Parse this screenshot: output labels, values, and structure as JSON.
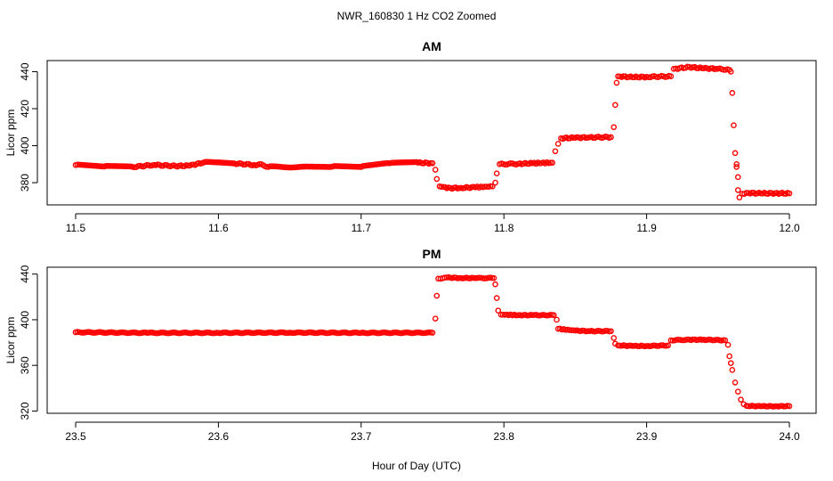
{
  "page": {
    "suptitle": "NWR_160830  1 Hz CO2 Zoomed",
    "xlabel": "Hour of Day (UTC)"
  },
  "colors": {
    "points": "#ff0000",
    "axes": "#000000",
    "background": "#ffffff"
  },
  "chart_data": [
    {
      "type": "scatter",
      "title": "AM",
      "xlabel": "",
      "ylabel": "Licor ppm",
      "xlim": [
        11.5,
        12.0
      ],
      "ylim": [
        368,
        446
      ],
      "x_ticks": [
        11.5,
        11.6,
        11.7,
        11.8,
        11.9,
        12.0
      ],
      "x_tick_labels": [
        "11.5",
        "11.6",
        "11.7",
        "11.8",
        "11.9",
        "12.0"
      ],
      "y_ticks": [
        380,
        400,
        420,
        440
      ],
      "y_tick_labels": [
        "380",
        "400",
        "420",
        "440"
      ],
      "grid": false,
      "marker": "open-circle",
      "series": [
        {
          "points": [
            [
              11.5,
              389.5
            ],
            [
              11.52,
              388.7
            ],
            [
              11.54,
              388.5
            ],
            [
              11.555,
              389.6
            ],
            [
              11.57,
              389.0
            ],
            [
              11.58,
              389.2
            ],
            [
              11.59,
              391.0
            ],
            [
              11.61,
              390.5
            ],
            [
              11.625,
              389.6
            ],
            [
              11.63,
              390.0
            ],
            [
              11.635,
              388.5
            ],
            [
              11.66,
              388.6
            ],
            [
              11.68,
              388.7
            ],
            [
              11.7,
              388.5
            ],
            [
              11.72,
              390.5
            ],
            [
              11.74,
              390.8
            ],
            [
              11.75,
              390.5
            ],
            [
              11.752,
              387.0
            ],
            [
              11.753,
              382.0
            ],
            [
              11.755,
              378.0
            ],
            [
              11.76,
              377.0
            ],
            [
              11.77,
              377.2
            ],
            [
              11.78,
              377.5
            ],
            [
              11.792,
              378.0
            ],
            [
              11.794,
              380.0
            ],
            [
              11.795,
              385.0
            ],
            [
              11.797,
              390.0
            ],
            [
              11.81,
              390.2
            ],
            [
              11.82,
              390.5
            ],
            [
              11.834,
              390.8
            ],
            [
              11.836,
              397.0
            ],
            [
              11.838,
              401.0
            ],
            [
              11.84,
              404.0
            ],
            [
              11.85,
              404.3
            ],
            [
              11.86,
              404.5
            ],
            [
              11.875,
              404.6
            ],
            [
              11.877,
              410.0
            ],
            [
              11.878,
              422.0
            ],
            [
              11.879,
              434.0
            ],
            [
              11.88,
              437.5
            ],
            [
              11.89,
              437.0
            ],
            [
              11.9,
              437.2
            ],
            [
              11.917,
              437.5
            ],
            [
              11.919,
              441.5
            ],
            [
              11.93,
              442.5
            ],
            [
              11.94,
              441.8
            ],
            [
              11.95,
              441.6
            ],
            [
              11.958,
              441.0
            ],
            [
              11.959,
              440.0
            ],
            [
              11.96,
              428.5
            ],
            [
              11.961,
              411.0
            ],
            [
              11.962,
              396.0
            ],
            [
              11.963,
              390.0
            ],
            [
              11.963,
              388.5
            ],
            [
              11.964,
              383.0
            ],
            [
              11.964,
              376.0
            ],
            [
              11.965,
              372.0
            ],
            [
              11.967,
              374.0
            ],
            [
              11.97,
              374.5
            ],
            [
              11.98,
              374.2
            ],
            [
              11.99,
              374.3
            ],
            [
              12.0,
              374.2
            ]
          ]
        }
      ]
    },
    {
      "type": "scatter",
      "title": "PM",
      "xlabel": "Hour of Day (UTC)",
      "ylabel": "Licor ppm",
      "xlim": [
        23.5,
        24.0
      ],
      "ylim": [
        318,
        446
      ],
      "x_ticks": [
        23.5,
        23.6,
        23.7,
        23.8,
        23.9,
        24.0
      ],
      "x_tick_labels": [
        "23.5",
        "23.6",
        "23.7",
        "23.8",
        "23.9",
        "24.0"
      ],
      "y_ticks": [
        320,
        360,
        400,
        440
      ],
      "y_tick_labels": [
        "320",
        "360",
        "400",
        "440"
      ],
      "grid": false,
      "marker": "open-circle",
      "series": [
        {
          "points": [
            [
              23.5,
              389.0
            ],
            [
              23.55,
              388.5
            ],
            [
              23.6,
              388.5
            ],
            [
              23.65,
              388.7
            ],
            [
              23.7,
              388.5
            ],
            [
              23.75,
              388.6
            ],
            [
              23.752,
              401.0
            ],
            [
              23.753,
              421.0
            ],
            [
              23.754,
              436.0
            ],
            [
              23.76,
              437.0
            ],
            [
              23.77,
              436.5
            ],
            [
              23.78,
              436.5
            ],
            [
              23.793,
              436.5
            ],
            [
              23.794,
              431.0
            ],
            [
              23.795,
              419.0
            ],
            [
              23.796,
              408.0
            ],
            [
              23.798,
              404.5
            ],
            [
              23.81,
              404.0
            ],
            [
              23.82,
              404.0
            ],
            [
              23.835,
              404.0
            ],
            [
              23.837,
              400.0
            ],
            [
              23.838,
              392.0
            ],
            [
              23.85,
              390.5
            ],
            [
              23.86,
              390.0
            ],
            [
              23.875,
              390.0
            ],
            [
              23.877,
              384.0
            ],
            [
              23.878,
              379.0
            ],
            [
              23.88,
              377.5
            ],
            [
              23.89,
              377.0
            ],
            [
              23.9,
              377.0
            ],
            [
              23.915,
              377.5
            ],
            [
              23.917,
              382.0
            ],
            [
              23.93,
              382.5
            ],
            [
              23.94,
              382.5
            ],
            [
              23.955,
              382.0
            ],
            [
              23.957,
              378.0
            ],
            [
              23.958,
              368.0
            ],
            [
              23.959,
              362.0
            ],
            [
              23.96,
              356.0
            ],
            [
              23.962,
              345.0
            ],
            [
              23.964,
              337.0
            ],
            [
              23.966,
              330.0
            ],
            [
              23.968,
              326.0
            ],
            [
              23.97,
              324.5
            ],
            [
              23.98,
              324.2
            ],
            [
              23.99,
              324.2
            ],
            [
              24.0,
              324.3
            ]
          ]
        }
      ]
    }
  ]
}
